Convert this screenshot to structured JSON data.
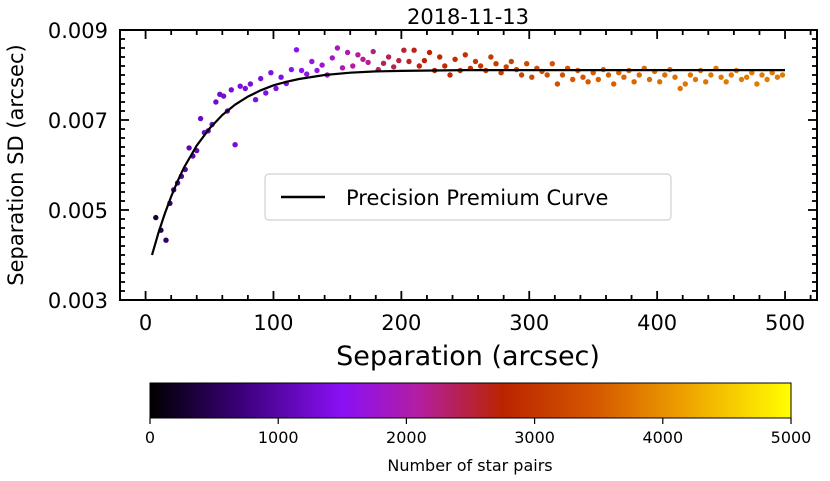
{
  "chart_data": {
    "type": "scatter",
    "title": "2018-11-13",
    "xlabel": "Separation (arcsec)",
    "ylabel": "Separation SD (arcsec)",
    "xlim": [
      -20,
      525
    ],
    "ylim": [
      0.003,
      0.009
    ],
    "xticks": [
      0,
      100,
      200,
      300,
      400,
      500
    ],
    "xtick_labels": [
      "0",
      "100",
      "200",
      "300",
      "400",
      "500"
    ],
    "yticks": [
      0.003,
      0.005,
      0.007,
      0.009
    ],
    "ytick_labels": [
      "0.003",
      "0.005",
      "0.007",
      "0.009"
    ],
    "grid": false,
    "legend": {
      "position": "center-right",
      "entries": [
        "Precision Premium Curve"
      ]
    },
    "curve": {
      "name": "Precision Premium Curve",
      "x": [
        5,
        10,
        15,
        20,
        25,
        30,
        40,
        50,
        60,
        70,
        80,
        90,
        100,
        110,
        120,
        140,
        160,
        180,
        200,
        250,
        300,
        350,
        400,
        450,
        500
      ],
      "y": [
        0.004,
        0.00449,
        0.00492,
        0.0053,
        0.00564,
        0.00594,
        0.00643,
        0.00681,
        0.00711,
        0.00734,
        0.00752,
        0.00766,
        0.00777,
        0.00785,
        0.00791,
        0.008,
        0.00805,
        0.00808,
        0.00809,
        0.00811,
        0.00811,
        0.00811,
        0.00811,
        0.00811,
        0.00811
      ],
      "color": "#000000"
    },
    "points": {
      "x": [
        8,
        12,
        16,
        19,
        22,
        25,
        28,
        31,
        34,
        37,
        40,
        43,
        46,
        49,
        52,
        55,
        58,
        61,
        64,
        67,
        70,
        74,
        78,
        82,
        86,
        90,
        94,
        98,
        102,
        106,
        110,
        114,
        118,
        122,
        126,
        130,
        134,
        138,
        142,
        146,
        150,
        154,
        158,
        162,
        166,
        170,
        174,
        178,
        182,
        186,
        190,
        194,
        198,
        202,
        206,
        210,
        214,
        218,
        222,
        226,
        230,
        234,
        238,
        242,
        246,
        250,
        254,
        258,
        262,
        266,
        270,
        274,
        278,
        282,
        286,
        290,
        294,
        298,
        302,
        306,
        310,
        314,
        318,
        322,
        326,
        330,
        334,
        338,
        342,
        346,
        350,
        354,
        358,
        362,
        366,
        370,
        374,
        378,
        382,
        386,
        390,
        394,
        398,
        402,
        406,
        410,
        414,
        418,
        422,
        426,
        430,
        434,
        438,
        442,
        446,
        450,
        454,
        458,
        462,
        466,
        470,
        474,
        478,
        482,
        486,
        490,
        494,
        498
      ],
      "y": [
        0.00483,
        0.00455,
        0.00433,
        0.00515,
        0.00545,
        0.0056,
        0.00575,
        0.0059,
        0.00638,
        0.0062,
        0.00632,
        0.00703,
        0.00672,
        0.00676,
        0.0069,
        0.0074,
        0.00757,
        0.00753,
        0.0072,
        0.00767,
        0.00645,
        0.00775,
        0.0077,
        0.0078,
        0.00745,
        0.00792,
        0.0076,
        0.00805,
        0.0077,
        0.00795,
        0.00781,
        0.00812,
        0.00856,
        0.0081,
        0.00802,
        0.0083,
        0.0081,
        0.00822,
        0.008,
        0.00838,
        0.0086,
        0.00816,
        0.0085,
        0.0082,
        0.00845,
        0.00835,
        0.00828,
        0.00852,
        0.00812,
        0.00826,
        0.0084,
        0.00818,
        0.00832,
        0.00855,
        0.0083,
        0.00855,
        0.0082,
        0.00832,
        0.0085,
        0.0081,
        0.0084,
        0.0082,
        0.008,
        0.00835,
        0.0081,
        0.00845,
        0.00815,
        0.0083,
        0.0082,
        0.0081,
        0.0084,
        0.00825,
        0.00805,
        0.00818,
        0.0083,
        0.00812,
        0.008,
        0.00825,
        0.00795,
        0.00815,
        0.00808,
        0.008,
        0.00825,
        0.0078,
        0.008,
        0.00815,
        0.0079,
        0.0081,
        0.00795,
        0.00785,
        0.00805,
        0.0079,
        0.00812,
        0.008,
        0.0078,
        0.00805,
        0.00795,
        0.0081,
        0.00785,
        0.008,
        0.00815,
        0.0079,
        0.00808,
        0.00785,
        0.008,
        0.00812,
        0.00795,
        0.0077,
        0.0078,
        0.008,
        0.0079,
        0.0081,
        0.00785,
        0.008,
        0.00815,
        0.00795,
        0.00785,
        0.008,
        0.0081,
        0.0079,
        0.00795,
        0.00805,
        0.0078,
        0.008,
        0.0079,
        0.00805,
        0.00795,
        0.008
      ],
      "color_key": "star_pairs",
      "star_pairs": [
        300,
        450,
        600,
        700,
        850,
        900,
        950,
        1000,
        1050,
        1100,
        1150,
        1200,
        1200,
        1200,
        1250,
        1250,
        1250,
        1300,
        1300,
        1300,
        1300,
        1350,
        1350,
        1350,
        1350,
        1350,
        1400,
        1400,
        1400,
        1400,
        1450,
        1500,
        1500,
        1550,
        1600,
        1650,
        1700,
        1750,
        1800,
        1850,
        1900,
        1950,
        2000,
        2050,
        2100,
        2150,
        2200,
        2250,
        2300,
        2350,
        2400,
        2450,
        2500,
        2550,
        2600,
        2650,
        2700,
        2700,
        2750,
        2800,
        2800,
        2850,
        2850,
        2900,
        2900,
        2950,
        2950,
        3000,
        3000,
        3050,
        3050,
        3100,
        3100,
        3150,
        3150,
        3200,
        3200,
        3250,
        3250,
        3300,
        3300,
        3350,
        3400,
        3350,
        3400,
        3400,
        3450,
        3450,
        3450,
        3500,
        3500,
        3500,
        3550,
        3550,
        3550,
        3600,
        3600,
        3600,
        3600,
        3650,
        3650,
        3650,
        3650,
        3700,
        3700,
        3700,
        3700,
        3750,
        3750,
        3750,
        3750,
        3750,
        3750,
        3800,
        3800,
        3800,
        3800,
        3800,
        3800,
        3800,
        3800,
        3800,
        3800,
        3800,
        3800,
        3800,
        3800,
        3800
      ]
    },
    "colorbar": {
      "label": "Number of star pairs",
      "range": [
        0,
        5000
      ],
      "ticks": [
        0,
        1000,
        2000,
        3000,
        4000,
        5000
      ],
      "tick_labels": [
        "0",
        "1000",
        "2000",
        "3000",
        "4000",
        "5000"
      ],
      "colormap": "gnuplot",
      "stops": [
        "#000000",
        "#3a0078",
        "#8a10f5",
        "#b41ea0",
        "#ba2400",
        "#d65a00",
        "#f0aa00",
        "#ffff00"
      ]
    }
  }
}
